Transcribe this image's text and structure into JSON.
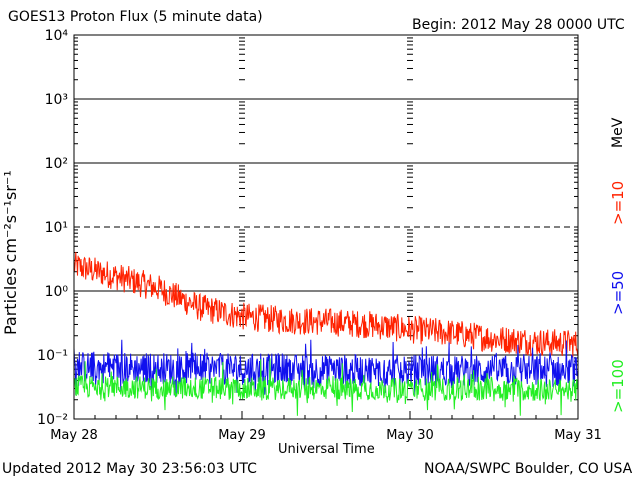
{
  "header": {
    "title": "GOES13 Proton Flux (5 minute data)",
    "begin": "Begin: 2012 May 28 0000 UTC"
  },
  "footer": {
    "updated": "Updated 2012 May 30 23:56:03 UTC",
    "source": "NOAA/SWPC Boulder, CO USA"
  },
  "chart_data": {
    "type": "line",
    "title": "GOES13 Proton Flux (5 minute data)",
    "xlabel": "Universal Time",
    "ylabel": "Particles cm⁻²s⁻¹sr⁻¹",
    "unit_label": "MeV",
    "y_scale": "log",
    "ylim": [
      0.01,
      10000
    ],
    "y_tick_labels": [
      "10⁴",
      "10³",
      "10²",
      "10¹",
      "10⁰",
      "10⁻¹",
      "10⁻²"
    ],
    "x_tick_labels": [
      "May 28",
      "May 29",
      "May 30",
      "May 31"
    ],
    "xlim": [
      "2012-05-28",
      "2012-05-31"
    ],
    "grid": true,
    "legend_position": "right, vertical",
    "series": [
      {
        "name": ">=10",
        "color": "#ff2200",
        "x": [
          "2012-05-28 00:00",
          "2012-05-28 06:00",
          "2012-05-28 12:00",
          "2012-05-28 18:00",
          "2012-05-29 00:00",
          "2012-05-29 06:00",
          "2012-05-29 12:00",
          "2012-05-29 18:00",
          "2012-05-30 00:00",
          "2012-05-30 06:00",
          "2012-05-30 12:00",
          "2012-05-30 18:00",
          "2012-05-31 00:00"
        ],
        "values": [
          2.5,
          1.7,
          1.1,
          0.55,
          0.4,
          0.35,
          0.33,
          0.3,
          0.25,
          0.22,
          0.18,
          0.16,
          0.15
        ]
      },
      {
        "name": ">=50",
        "color": "#1010ee",
        "x": [
          "2012-05-28 00:00",
          "2012-05-28 12:00",
          "2012-05-29 00:00",
          "2012-05-29 12:00",
          "2012-05-30 00:00",
          "2012-05-30 12:00",
          "2012-05-31 00:00"
        ],
        "values": [
          0.065,
          0.062,
          0.06,
          0.058,
          0.057,
          0.056,
          0.055
        ]
      },
      {
        "name": ">=100",
        "color": "#22ee22",
        "x": [
          "2012-05-28 00:00",
          "2012-05-28 12:00",
          "2012-05-29 00:00",
          "2012-05-29 12:00",
          "2012-05-30 00:00",
          "2012-05-30 12:00",
          "2012-05-31 00:00"
        ],
        "values": [
          0.032,
          0.031,
          0.03,
          0.03,
          0.029,
          0.029,
          0.028
        ]
      }
    ]
  }
}
